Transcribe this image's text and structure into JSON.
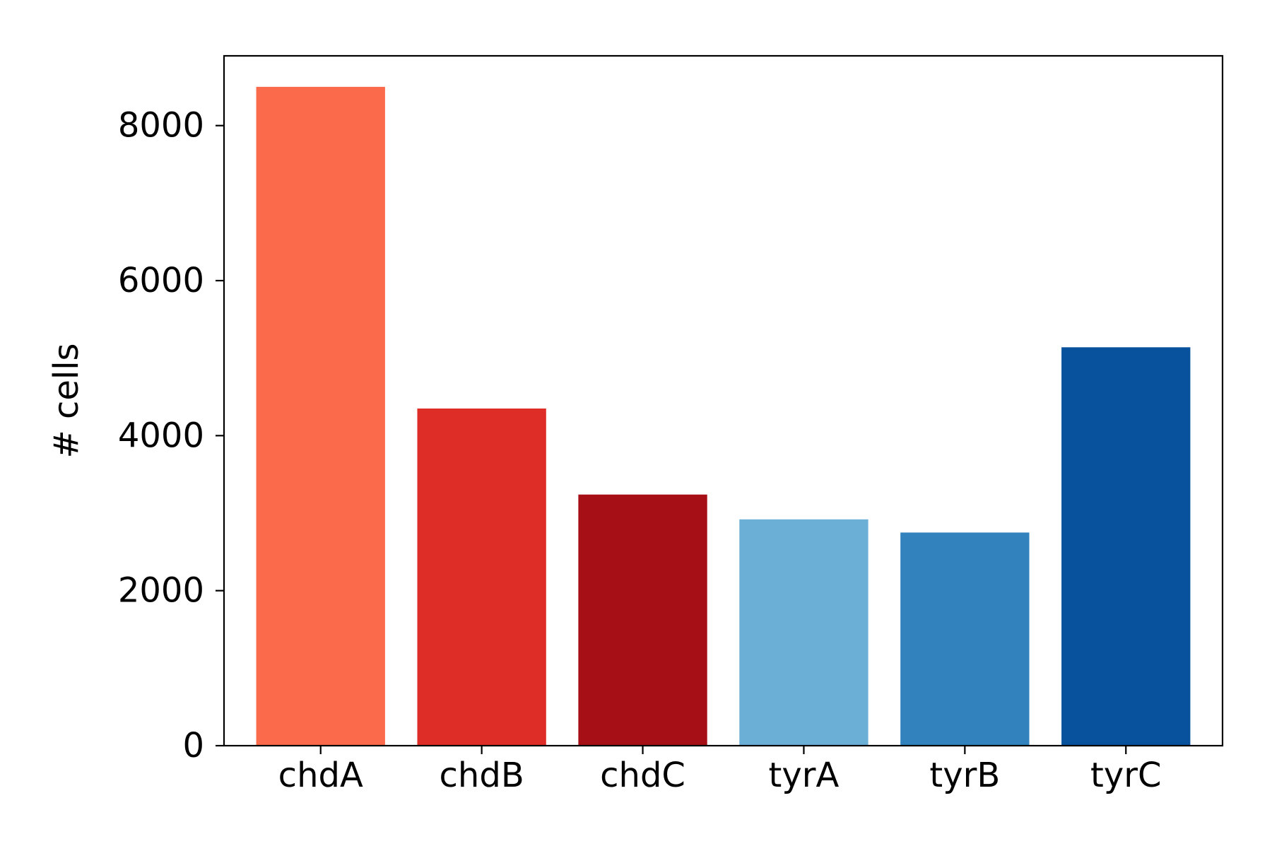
{
  "chart_data": {
    "type": "bar",
    "categories": [
      "chdA",
      "chdB",
      "chdC",
      "tyrA",
      "tyrB",
      "tyrC"
    ],
    "values": [
      8500,
      4350,
      3240,
      2920,
      2750,
      5140
    ],
    "colors": [
      "#fb6a4a",
      "#de2d26",
      "#a50f15",
      "#6baed6",
      "#3182bd",
      "#08519c"
    ],
    "title": "",
    "xlabel": "",
    "ylabel": "# cells",
    "ylim": [
      0,
      8900
    ],
    "yticks": [
      0,
      2000,
      4000,
      6000,
      8000
    ],
    "ytick_labels": [
      "0",
      "2000",
      "4000",
      "6000",
      "8000"
    ],
    "grid": false,
    "legend": "none"
  }
}
